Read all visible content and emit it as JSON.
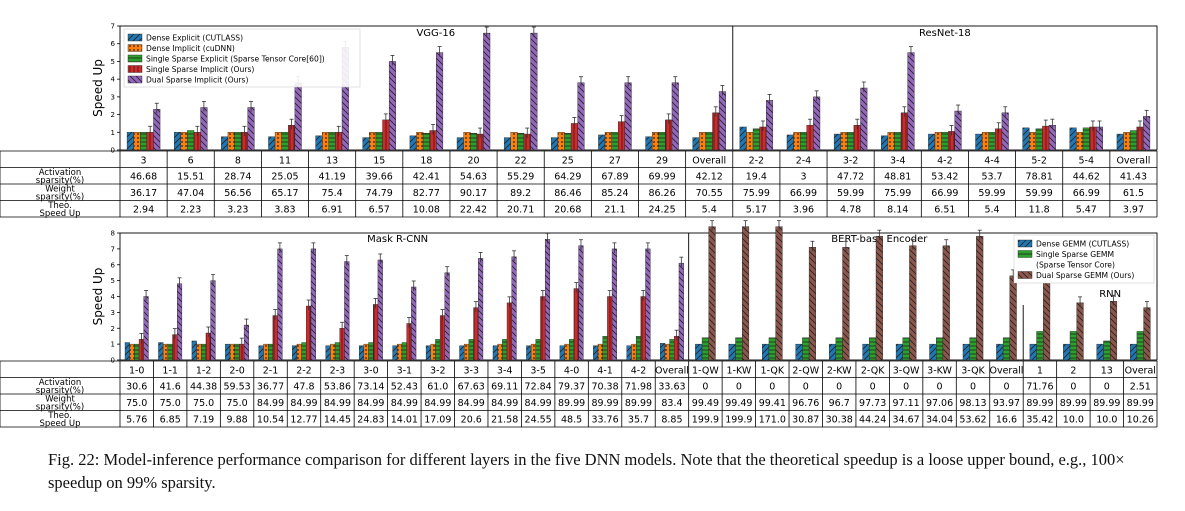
{
  "caption": {
    "label": "Fig. 22:",
    "text": "Model-inference performance comparison for different layers in the five DNN models. Note that the theoretical speedup is a loose upper bound, e.g., 100× speedup on 99% sparsity."
  },
  "colors": {
    "dense_explicit": "#1f77b4",
    "dense_implicit": "#ff7f0e",
    "single_explicit": "#2ca02c",
    "single_implicit": "#d62728",
    "dual_implicit": "#9467bd",
    "dense_gemm": "#1f77b4",
    "single_gemm": "#2ca02c",
    "dual_gemm": "#8c564b"
  },
  "table_row_labels": [
    "Activation sparsity(%)",
    "Weight sparsity(%)",
    "Theo. Speed Up"
  ],
  "chart_data": [
    {
      "type": "bar",
      "ylabel": "Speed Up",
      "ylim": [
        0,
        7
      ],
      "yticks": [
        0,
        1,
        2,
        3,
        4,
        5,
        6,
        7
      ],
      "legend_position": "top-left",
      "panels": [
        {
          "title": "VGG-16",
          "span": [
            0,
            12
          ]
        },
        {
          "title": "ResNet-18",
          "span": [
            13,
            21
          ]
        }
      ],
      "series": [
        {
          "name": "Dense Explicit (CUTLASS)",
          "color_key": "dense_explicit",
          "values": [
            1.0,
            1.0,
            0.75,
            0.75,
            0.8,
            0.7,
            0.8,
            0.7,
            0.7,
            0.7,
            0.85,
            0.75,
            0.7,
            1.3,
            0.85,
            0.9,
            0.8,
            0.9,
            0.9,
            1.25,
            1.25,
            0.9
          ]
        },
        {
          "name": "Dense Implicit (cuDNN)",
          "color_key": "dense_implicit",
          "values": [
            1.0,
            1.0,
            1.0,
            1.0,
            1.0,
            1.0,
            1.0,
            1.0,
            1.0,
            1.0,
            1.0,
            1.0,
            1.0,
            1.0,
            1.0,
            1.0,
            1.0,
            1.0,
            1.0,
            1.0,
            1.0,
            1.0
          ]
        },
        {
          "name": "Single Sparse Explicit (Sparse Tensor Core[60])",
          "color_key": "single_explicit",
          "values": [
            1.0,
            1.1,
            1.0,
            1.0,
            1.0,
            1.0,
            0.95,
            0.95,
            0.95,
            0.95,
            1.0,
            1.0,
            1.0,
            1.2,
            1.0,
            1.0,
            1.0,
            1.0,
            1.0,
            1.2,
            1.25,
            1.1
          ]
        },
        {
          "name": "Single Sparse Implicit (Ours)",
          "color_key": "single_implicit",
          "values": [
            1.0,
            1.0,
            1.0,
            1.4,
            1.0,
            1.7,
            1.1,
            0.9,
            0.9,
            1.5,
            1.6,
            1.7,
            2.1,
            1.3,
            1.4,
            1.4,
            2.1,
            1.05,
            1.2,
            1.35,
            1.3,
            1.3
          ]
        },
        {
          "name": "Dual Sparse Implicit (Ours)",
          "color_key": "dual_implicit",
          "values": [
            2.3,
            2.4,
            2.4,
            3.8,
            5.8,
            5.0,
            5.5,
            6.6,
            6.6,
            3.8,
            3.8,
            3.8,
            3.3,
            2.8,
            3.0,
            3.5,
            5.5,
            2.2,
            2.1,
            1.4,
            1.3,
            1.9
          ]
        }
      ],
      "categories": [
        "3",
        "6",
        "8",
        "11",
        "13",
        "15",
        "18",
        "20",
        "22",
        "25",
        "27",
        "29",
        "Overall",
        "2-2",
        "2-4",
        "3-2",
        "3-4",
        "4-2",
        "4-4",
        "5-2",
        "5-4",
        "Overall"
      ],
      "table": {
        "activation": [
          "46.68",
          "15.51",
          "28.74",
          "25.05",
          "41.19",
          "39.66",
          "42.41",
          "54.63",
          "55.29",
          "64.29",
          "67.89",
          "69.99",
          "42.12",
          "19.4",
          "3",
          "47.72",
          "48.81",
          "53.42",
          "53.7",
          "78.81",
          "44.62",
          "41.43"
        ],
        "weight": [
          "36.17",
          "47.04",
          "56.56",
          "65.17",
          "75.4",
          "74.79",
          "82.77",
          "90.17",
          "89.2",
          "86.46",
          "85.24",
          "86.26",
          "70.55",
          "75.99",
          "66.99",
          "59.99",
          "75.99",
          "66.99",
          "59.99",
          "59.99",
          "66.99",
          "61.5"
        ],
        "theo": [
          "2.94",
          "2.23",
          "3.23",
          "3.83",
          "6.91",
          "6.57",
          "10.08",
          "22.42",
          "20.71",
          "20.68",
          "21.1",
          "24.25",
          "5.4",
          "5.17",
          "3.96",
          "4.78",
          "8.14",
          "6.51",
          "5.4",
          "11.8",
          "5.47",
          "3.97"
        ]
      }
    },
    {
      "type": "bar",
      "ylabel": "Speed Up",
      "ylim": [
        0,
        8
      ],
      "yticks": [
        0,
        1,
        2,
        3,
        4,
        5,
        6,
        7,
        8
      ],
      "panels": [
        {
          "title": "Mask R-CNN",
          "span": [
            0,
            17
          ]
        },
        {
          "title": "BERT-base Encoder",
          "span": [
            18,
            30
          ]
        },
        {
          "title": "RNN",
          "span": [
            31,
            34
          ]
        }
      ],
      "group1": {
        "categories": [
          "1-0",
          "1-1",
          "1-2",
          "2-0",
          "2-1",
          "2-2",
          "2-3",
          "3-0",
          "3-1",
          "3-2",
          "3-3",
          "3-4",
          "3-5",
          "4-0",
          "4-1",
          "4-2",
          "Overall"
        ],
        "series": [
          {
            "name": "Dense Explicit (CUTLASS)",
            "color_key": "dense_explicit",
            "values": [
              1.1,
              1.1,
              1.2,
              1.0,
              0.9,
              0.9,
              0.9,
              0.9,
              0.9,
              0.9,
              0.9,
              0.9,
              0.9,
              0.9,
              0.9,
              0.9,
              1.05
            ]
          },
          {
            "name": "Dense Implicit (cuDNN)",
            "color_key": "dense_implicit",
            "values": [
              1.0,
              1.0,
              1.0,
              1.0,
              1.0,
              1.0,
              1.0,
              1.0,
              1.0,
              1.0,
              1.0,
              1.0,
              1.0,
              1.0,
              1.0,
              1.0,
              1.0
            ]
          },
          {
            "name": "Single Sparse Explicit (Sparse Tensor Core[60])",
            "color_key": "single_explicit",
            "values": [
              1.0,
              1.0,
              1.0,
              1.0,
              1.0,
              1.1,
              1.1,
              1.1,
              1.1,
              1.3,
              1.3,
              1.3,
              1.3,
              1.3,
              1.5,
              1.5,
              1.3
            ]
          },
          {
            "name": "Single Sparse Implicit (Ours)",
            "color_key": "single_implicit",
            "values": [
              1.3,
              1.6,
              1.7,
              1.0,
              2.8,
              3.4,
              2.0,
              3.5,
              2.3,
              2.8,
              3.3,
              3.6,
              4.0,
              4.5,
              4.0,
              4.0,
              1.5
            ]
          },
          {
            "name": "Dual Sparse Implicit (Ours)",
            "color_key": "dual_implicit",
            "values": [
              4.0,
              4.8,
              5.0,
              2.2,
              7.0,
              7.0,
              6.2,
              6.3,
              4.6,
              5.5,
              6.4,
              6.5,
              7.6,
              7.2,
              7.0,
              7.0,
              6.1
            ]
          }
        ]
      },
      "group2": {
        "categories": [
          "1-QW",
          "1-KW",
          "1-QK",
          "2-QW",
          "2-KW",
          "2-QK",
          "3-QW",
          "3-KW",
          "3-QK",
          "Overall",
          "1",
          "2",
          "13",
          "Overal"
        ],
        "series": [
          {
            "name": "Dense GEMM (CUTLASS)",
            "color_key": "dense_gemm",
            "values": [
              1.0,
              1.0,
              1.0,
              1.0,
              1.0,
              1.0,
              1.0,
              1.0,
              1.0,
              1.0,
              1.0,
              1.0,
              1.0,
              1.0
            ]
          },
          {
            "name": "Single Sparse GEMM (Sparse Tensor Core)",
            "color_key": "single_gemm",
            "values": [
              1.4,
              1.4,
              1.4,
              1.4,
              1.4,
              1.4,
              1.4,
              1.4,
              1.4,
              1.4,
              1.8,
              1.8,
              1.2,
              1.8
            ]
          },
          {
            "name": "Dual Sparse GEMM (Ours)",
            "color_key": "dual_gemm",
            "values": [
              8.4,
              8.4,
              8.4,
              7.1,
              7.1,
              7.8,
              7.2,
              7.2,
              7.8,
              5.3,
              5.2,
              3.6,
              3.7,
              3.3
            ]
          }
        ]
      },
      "legend": [
        "Dense GEMM (CUTLASS)",
        "Single Sparse GEMM",
        "(Sparse Tensor Core)",
        "Dual Sparse GEMM (Ours)"
      ],
      "table": {
        "categories": [
          "1-0",
          "1-1",
          "1-2",
          "2-0",
          "2-1",
          "2-2",
          "2-3",
          "3-0",
          "3-1",
          "3-2",
          "3-3",
          "3-4",
          "3-5",
          "4-0",
          "4-1",
          "4-2",
          "Overall",
          "1-QW",
          "1-KW",
          "1-QK",
          "2-QW",
          "2-KW",
          "2-QK",
          "3-QW",
          "3-KW",
          "3-QK",
          "Overall",
          "1",
          "2",
          "13",
          "Overal"
        ],
        "activation": [
          "30.6",
          "41.6",
          "44.38",
          "59.53",
          "36.77",
          "47.8",
          "53.86",
          "73.14",
          "52.43",
          "61.0",
          "67.63",
          "69.11",
          "72.84",
          "79.37",
          "70.38",
          "71.98",
          "33.63",
          "0",
          "0",
          "0",
          "0",
          "0",
          "0",
          "0",
          "0",
          "0",
          "0",
          "71.76",
          "0",
          "0",
          "2.51"
        ],
        "weight": [
          "75.0",
          "75.0",
          "75.0",
          "75.0",
          "84.99",
          "84.99",
          "84.99",
          "84.99",
          "84.99",
          "84.99",
          "84.99",
          "84.99",
          "84.99",
          "89.99",
          "89.99",
          "89.99",
          "83.4",
          "99.49",
          "99.49",
          "99.41",
          "96.76",
          "96.7",
          "97.73",
          "97.11",
          "97.06",
          "98.13",
          "93.97",
          "89.99",
          "89.99",
          "89.99",
          "89.99"
        ],
        "theo": [
          "5.76",
          "6.85",
          "7.19",
          "9.88",
          "10.54",
          "12.77",
          "14.45",
          "24.83",
          "14.01",
          "17.09",
          "20.6",
          "21.58",
          "24.55",
          "48.5",
          "33.76",
          "35.7",
          "8.85",
          "199.9",
          "199.9",
          "171.0",
          "30.87",
          "30.38",
          "44.24",
          "34.67",
          "34.04",
          "53.62",
          "16.6",
          "35.42",
          "10.0",
          "10.0",
          "10.26"
        ]
      }
    }
  ]
}
